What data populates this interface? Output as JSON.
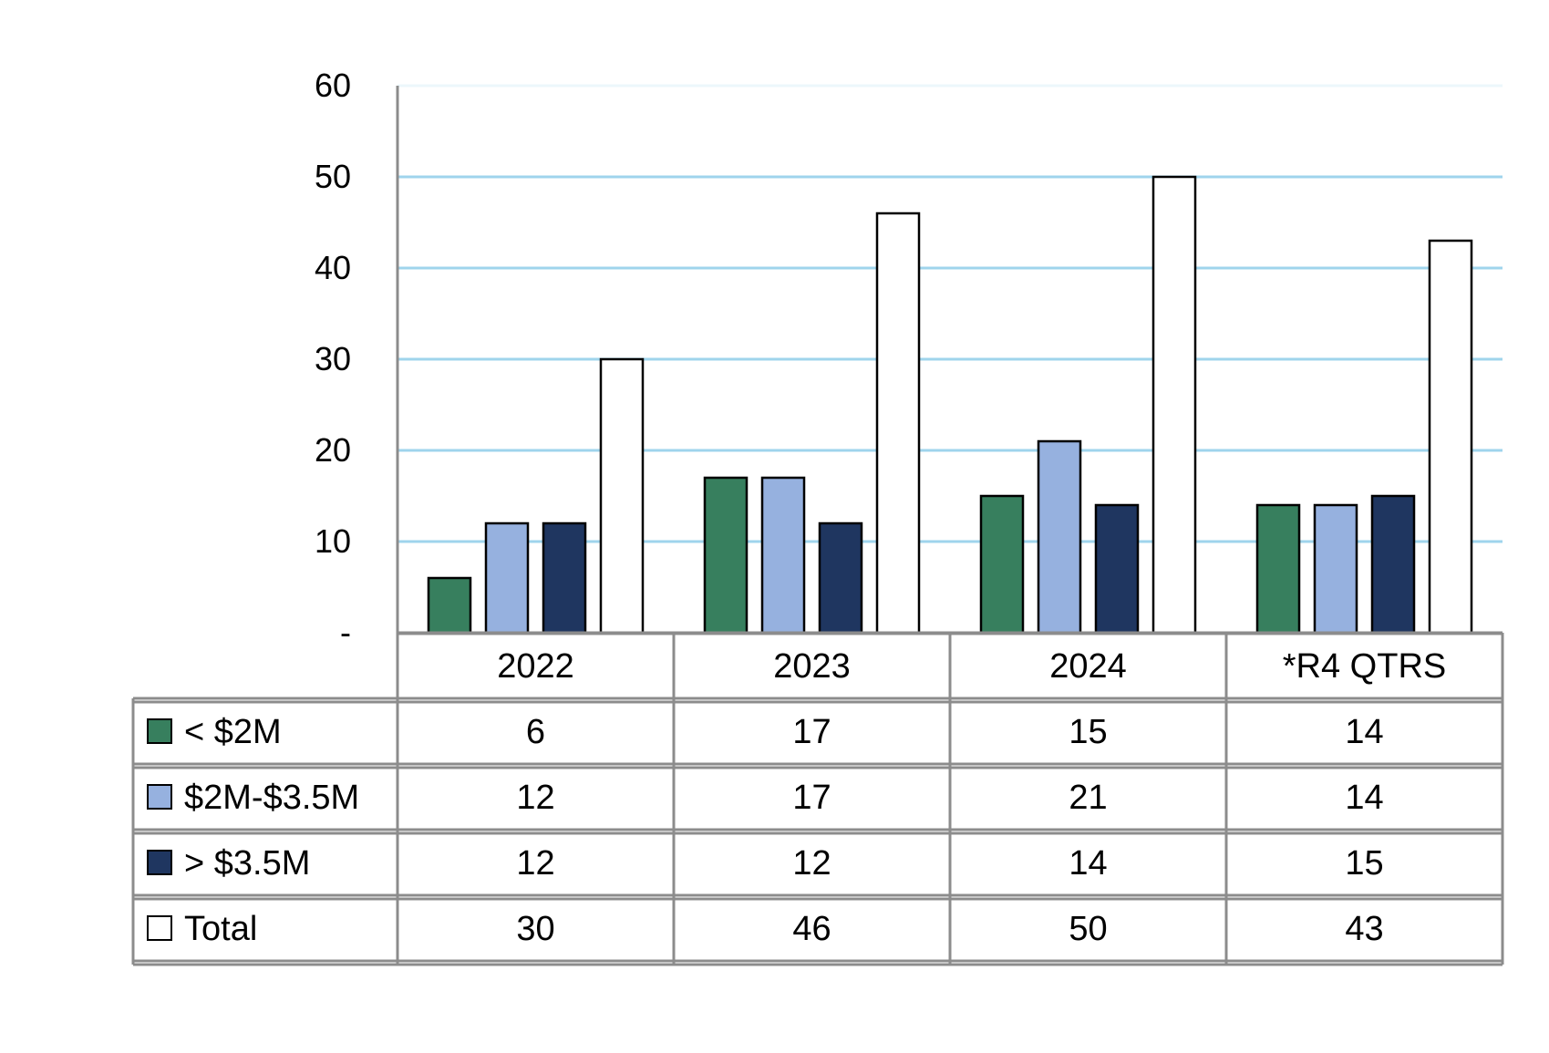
{
  "chart_data": {
    "type": "bar",
    "categories": [
      "2022",
      "2023",
      "2024",
      "*R4 QTRS"
    ],
    "series": [
      {
        "name": "< $2M",
        "values": [
          6,
          17,
          15,
          14
        ],
        "color": "#377F5E"
      },
      {
        "name": "$2M-$3.5M",
        "values": [
          12,
          17,
          21,
          14
        ],
        "color": "#96B1DF"
      },
      {
        "name": "> $3.5M",
        "values": [
          12,
          12,
          14,
          15
        ],
        "color": "#1F3660"
      },
      {
        "name": "Total",
        "values": [
          30,
          46,
          50,
          43
        ],
        "color": "#FFFFFF"
      }
    ],
    "ylim": [
      0,
      60
    ],
    "yticks": [
      0,
      10,
      20,
      30,
      40,
      50,
      60
    ],
    "ytick_labels": [
      "-",
      "10",
      "20",
      "30",
      "40",
      "50",
      "60"
    ],
    "grid": true,
    "grid_color": "#7FC6E6",
    "table_border_color": "#8C8C8C",
    "legend": "data-table"
  }
}
